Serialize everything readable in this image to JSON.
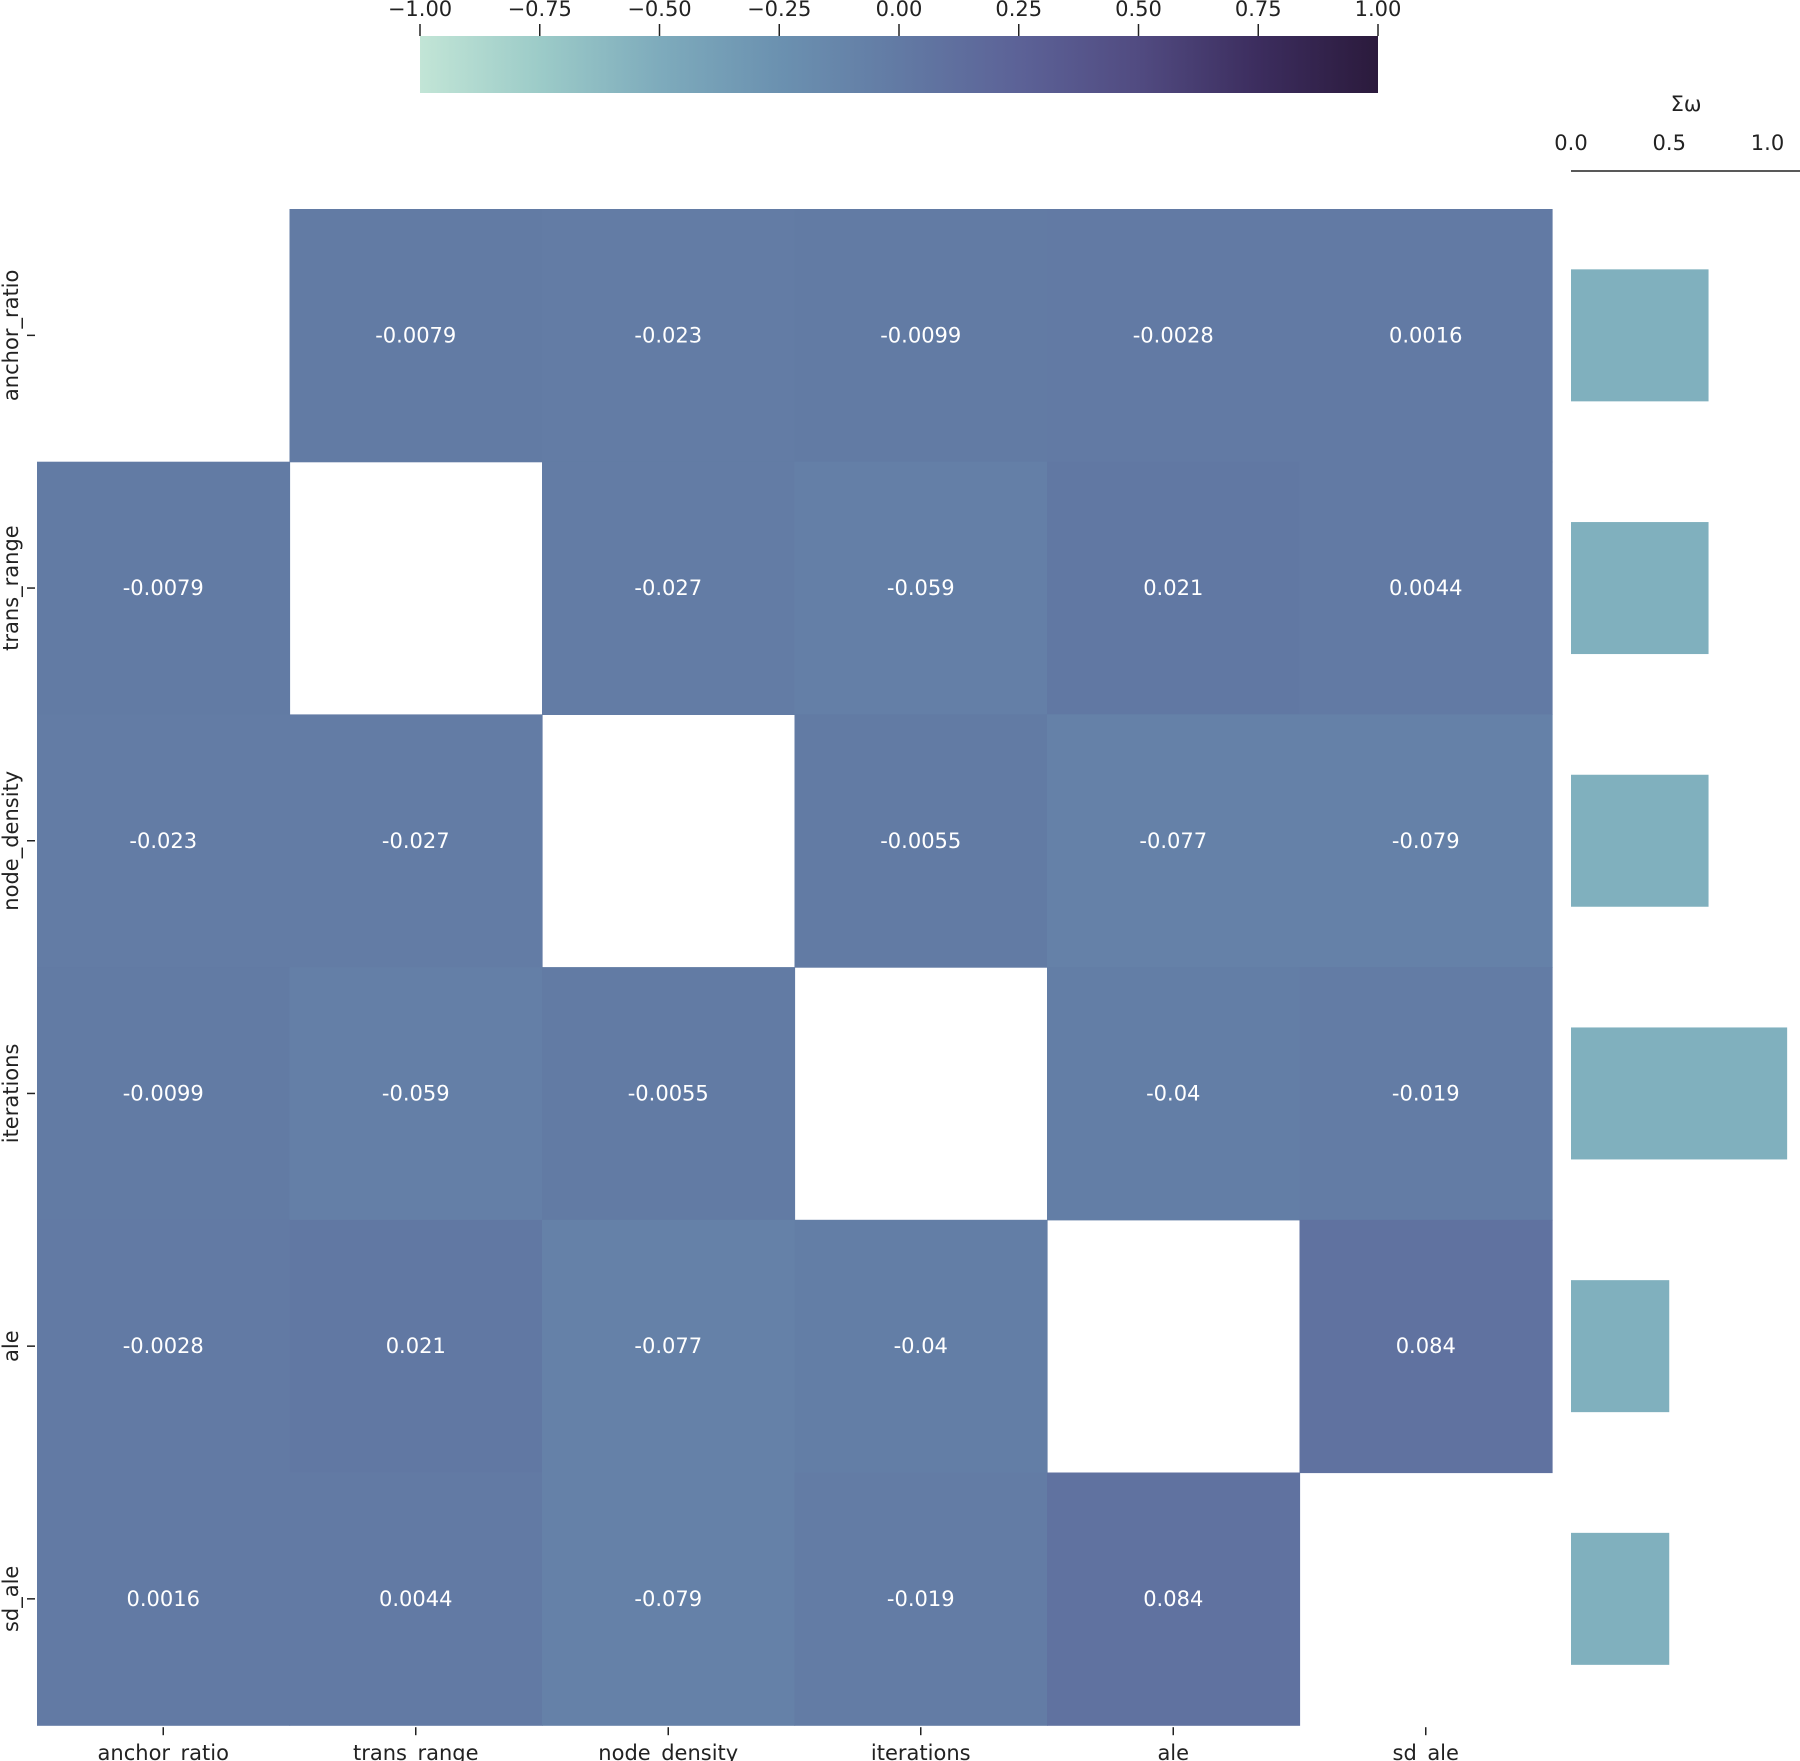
{
  "chart_data": {
    "type": "heatmap",
    "title": "",
    "variables": [
      "anchor_ratio",
      "trans_range",
      "node_density",
      "iterations",
      "ale",
      "sd_ale"
    ],
    "matrix": [
      [
        null,
        -0.0079,
        -0.023,
        -0.0099,
        -0.0028,
        0.0016
      ],
      [
        -0.0079,
        null,
        -0.027,
        -0.059,
        0.021,
        0.0044
      ],
      [
        -0.023,
        -0.027,
        null,
        -0.0055,
        -0.077,
        -0.079
      ],
      [
        -0.0099,
        -0.059,
        -0.0055,
        null,
        -0.04,
        -0.019
      ],
      [
        -0.0028,
        0.021,
        -0.077,
        -0.04,
        null,
        0.084
      ],
      [
        0.0016,
        0.0044,
        -0.079,
        -0.019,
        0.084,
        null
      ]
    ],
    "cell_labels": [
      [
        null,
        "-0.0079",
        "-0.023",
        "-0.0099",
        "-0.0028",
        "0.0016"
      ],
      [
        "-0.0079",
        null,
        "-0.027",
        "-0.059",
        "0.021",
        "0.0044"
      ],
      [
        "-0.023",
        "-0.027",
        null,
        "-0.0055",
        "-0.077",
        "-0.079"
      ],
      [
        "-0.0099",
        "-0.059",
        "-0.0055",
        null,
        "-0.04",
        "-0.019"
      ],
      [
        "-0.0028",
        "0.021",
        "-0.077",
        "-0.04",
        null,
        "0.084"
      ],
      [
        "0.0016",
        "0.0044",
        "-0.079",
        "-0.019",
        "0.084",
        null
      ]
    ],
    "colorbar": {
      "range": [
        -1.0,
        1.0
      ],
      "ticks": [
        -1.0,
        -0.75,
        -0.5,
        -0.25,
        0.0,
        0.25,
        0.5,
        0.75,
        1.0
      ],
      "tick_labels": [
        "−1.00",
        "−0.75",
        "−0.50",
        "−0.25",
        "0.00",
        "0.25",
        "0.50",
        "0.75",
        "1.00"
      ],
      "placement": "top",
      "colormap": "mako_r",
      "stops": [
        "#c2e5d6",
        "#9ccbc8",
        "#7eabbc",
        "#6b91b0",
        "#627aa4",
        "#5c6297",
        "#514b81",
        "#3c2d5e",
        "#2b1a3c"
      ]
    },
    "side_bar": {
      "title": "Σω",
      "axis_ticks": [
        0.0,
        0.5,
        1.0
      ],
      "axis_tick_labels": [
        "0.0",
        "0.5",
        "1.0"
      ],
      "xlim": [
        0.0,
        1.15
      ],
      "categories": [
        "anchor_ratio",
        "trans_range",
        "node_density",
        "iterations",
        "ale",
        "sd_ale"
      ],
      "values": [
        0.7,
        0.7,
        0.7,
        1.1,
        0.5,
        0.5
      ],
      "color": "#80b0be"
    },
    "x_tick_labels": [
      "anchor_ratio",
      "trans_range",
      "node_density",
      "iterations",
      "ale",
      "sd_ale"
    ],
    "y_tick_labels": [
      "anchor_ratio",
      "trans_range",
      "node_density",
      "iterations",
      "ale",
      "sd_ale"
    ]
  }
}
